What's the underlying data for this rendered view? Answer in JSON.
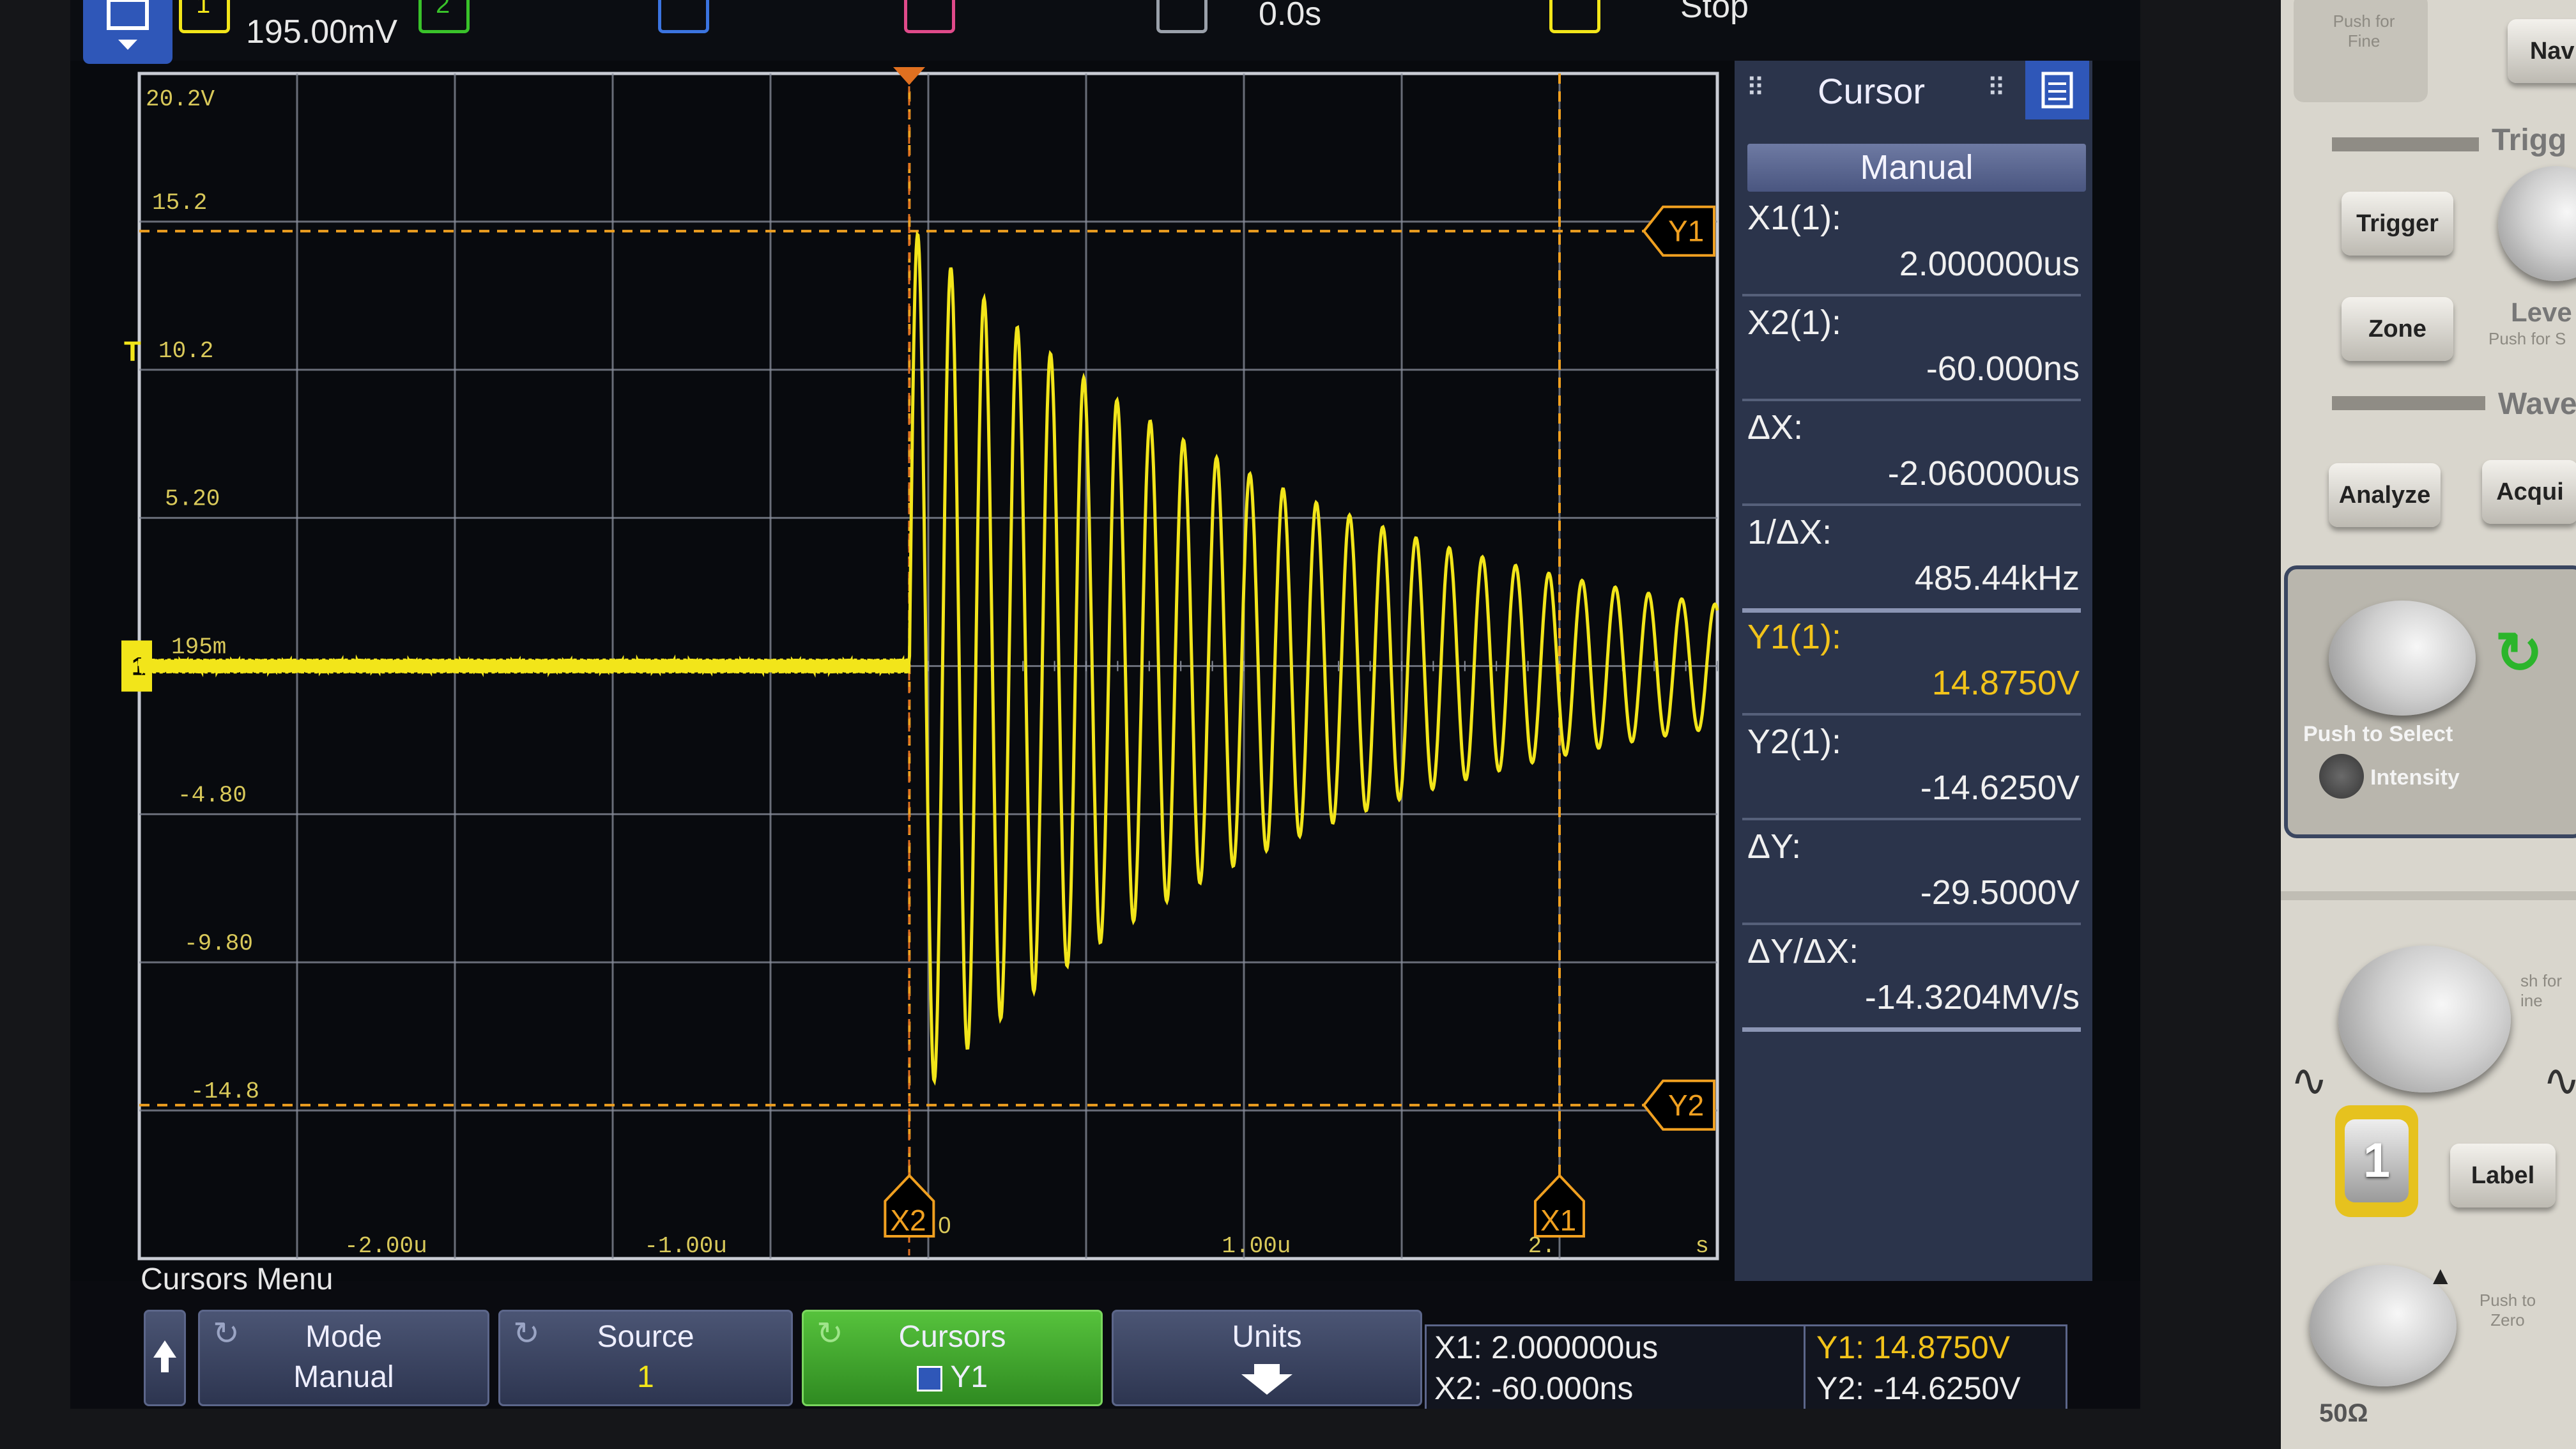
{
  "colors": {
    "trace": "#f2e51a",
    "cursor": "#f0a020",
    "grid": "#8a8f9c",
    "panel": "#2b344b",
    "accent_green": "#3fb32a",
    "channel2": "#39c22a",
    "channel3": "#3b74e0",
    "channel4": "#e04a8a"
  },
  "topbar": {
    "channel1_label": "1",
    "channel2_label": "2",
    "scale_readout": "195.00mV",
    "time_offset": "0.0s",
    "run_state": "Stop"
  },
  "grid": {
    "y_labels": [
      "20.2V",
      "15.2",
      "10.2",
      "5.20",
      "195m",
      "-4.80",
      "-9.80",
      "-14.8"
    ],
    "x_labels": [
      "-2.00u",
      "-1.00u",
      "1.00u",
      "2.",
      "s"
    ],
    "trigger_marker": "T",
    "ground_marker": "1",
    "cursor_labels": {
      "y1": "Y1",
      "y2": "Y2",
      "x1": "X1",
      "x2": "X2"
    },
    "x2_suffix": "0"
  },
  "trace": {
    "baseline_v": 0.195,
    "ring_start_us": -0.06,
    "peak_v": 14.875,
    "trough_v": -14.625,
    "ring_freq_mhz": 9.5,
    "decay_us": 1.3
  },
  "cursor_panel": {
    "title": "Cursor",
    "mode": "Manual",
    "rows": [
      {
        "label": "X1(1):",
        "value": "2.000000us"
      },
      {
        "label": "X2(1):",
        "value": "-60.000ns"
      },
      {
        "label": "ΔX:",
        "value": "-2.060000us"
      },
      {
        "label": "1/ΔX:",
        "value": "485.44kHz"
      },
      {
        "label": "Y1(1):",
        "value": "14.8750V"
      },
      {
        "label": "Y2(1):",
        "value": "-14.6250V"
      },
      {
        "label": "ΔY:",
        "value": "-29.5000V"
      },
      {
        "label": "ΔY/ΔX:",
        "value": "-14.3204MV/s"
      }
    ]
  },
  "softkeys": {
    "menu_title": "Cursors Menu",
    "mode": {
      "title": "Mode",
      "value": "Manual"
    },
    "source": {
      "title": "Source",
      "value": "1"
    },
    "cursors": {
      "title": "Cursors",
      "value": "Y1"
    },
    "units": {
      "title": "Units"
    },
    "readout_left": {
      "x1": "X1: 2.000000us",
      "x2": "X2: -60.000ns"
    },
    "readout_right": {
      "y1": "Y1: 14.8750V",
      "y2": "Y2: -14.6250V"
    }
  },
  "front_panel": {
    "push_for_fine": "Push for Fine",
    "navigate": "Navi",
    "trigger_section": "Trigg",
    "trigger_button": "Trigger",
    "zone_button": "Zone",
    "level_label": "Leve",
    "level_sub": "Push for S",
    "waveform_section": "Wavefo",
    "analyze_button": "Analyze",
    "acquire_button": "Acqui",
    "push_to_select": "Push to Select",
    "intensity": "Intensity",
    "push_for_fine2": "sh for ine",
    "channel_button": "1",
    "label_button": "Label",
    "push_to_zero": "Push to Zero",
    "impedance": "50Ω"
  }
}
